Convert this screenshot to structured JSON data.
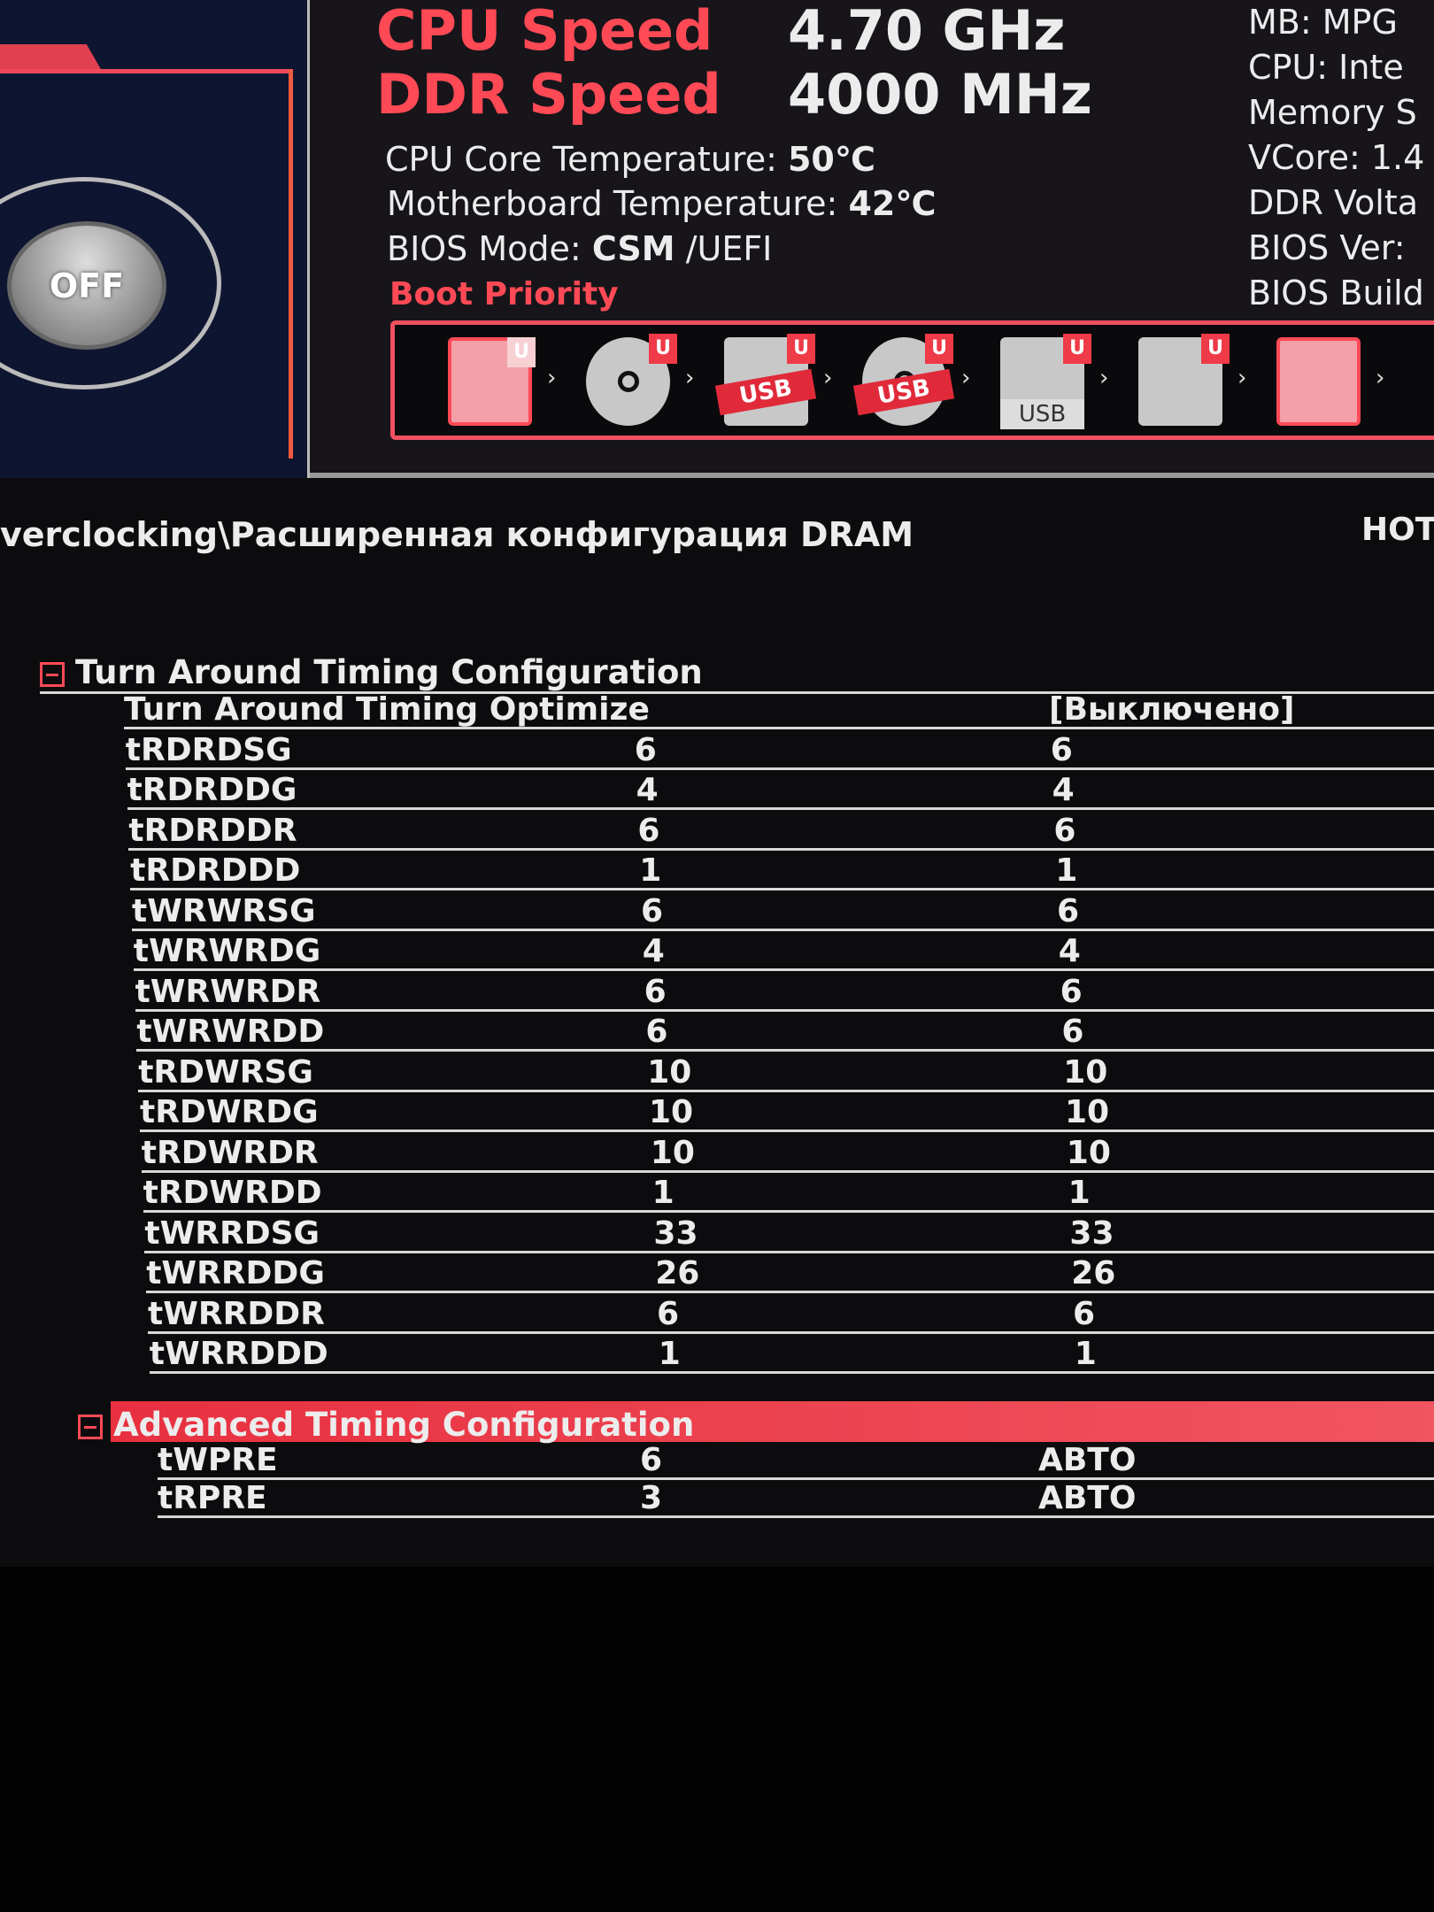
{
  "game_boost": {
    "label": "OFF"
  },
  "header": {
    "cpu_speed_label": "CPU Speed",
    "cpu_speed_value": "4.70 GHz",
    "ddr_speed_label": "DDR Speed",
    "ddr_speed_value": "4000 MHz",
    "cpu_temp_label": "CPU Core Temperature:",
    "cpu_temp_value": "50℃",
    "mb_temp_label": "Motherboard Temperature:",
    "mb_temp_value": "42℃",
    "bios_mode_label": "BIOS Mode:",
    "bios_mode_value": "CSM",
    "bios_mode_alt": "/UEFI",
    "boot_priority_label": "Boot Priority"
  },
  "boot_devices": [
    {
      "icon": "hdd-icon",
      "badge": "U"
    },
    {
      "icon": "optical-disc-icon",
      "badge": "U"
    },
    {
      "icon": "usb-hdd-icon",
      "badge": "U",
      "tag": "USB"
    },
    {
      "icon": "usb-cd-icon",
      "badge": "U",
      "tag": "USB"
    },
    {
      "icon": "usb-key-icon",
      "badge": "U",
      "tag": "USB"
    },
    {
      "icon": "network-icon",
      "badge": "U"
    },
    {
      "icon": "hdd-icon"
    }
  ],
  "sysinfo": [
    "MB: MPG",
    "CPU: Inte",
    "Memory S",
    "VCore: 1.4",
    "DDR Volta",
    "BIOS Ver:",
    "BIOS Build"
  ],
  "breadcrumb": "verclocking\\Расширенная конфигурация DRAM",
  "hot_key": "HOT",
  "sections": [
    {
      "title": "Turn Around Timing Configuration",
      "rows": [
        [
          "Turn Around Timing Optimize",
          "",
          "[Выключено]"
        ],
        [
          "tRDRDSG",
          "6",
          "6"
        ],
        [
          "tRDRDDG",
          "4",
          "4"
        ],
        [
          "tRDRDDR",
          "6",
          "6"
        ],
        [
          "tRDRDDD",
          "1",
          "1"
        ],
        [
          "tWRWRSG",
          "6",
          "6"
        ],
        [
          "tWRWRDG",
          "4",
          "4"
        ],
        [
          "tWRWRDR",
          "6",
          "6"
        ],
        [
          "tWRWRDD",
          "6",
          "6"
        ],
        [
          "tRDWRSG",
          "10",
          "10"
        ],
        [
          "tRDWRDG",
          "10",
          "10"
        ],
        [
          "tRDWRDR",
          "10",
          "10"
        ],
        [
          "tRDWRDD",
          "1",
          "1"
        ],
        [
          "tWRRDSG",
          "33",
          "33"
        ],
        [
          "tWRRDDG",
          "26",
          "26"
        ],
        [
          "tWRRDDR",
          "6",
          "6"
        ],
        [
          "tWRRDDD",
          "1",
          "1"
        ]
      ]
    },
    {
      "title": "Advanced Timing Configuration",
      "rows": [
        [
          "tWPRE",
          "6",
          "АВТО"
        ],
        [
          "tRPRE",
          "3",
          "АВТО"
        ]
      ]
    }
  ],
  "colors": {
    "accent": "#ff4a56",
    "background": "#0c0c0e"
  }
}
